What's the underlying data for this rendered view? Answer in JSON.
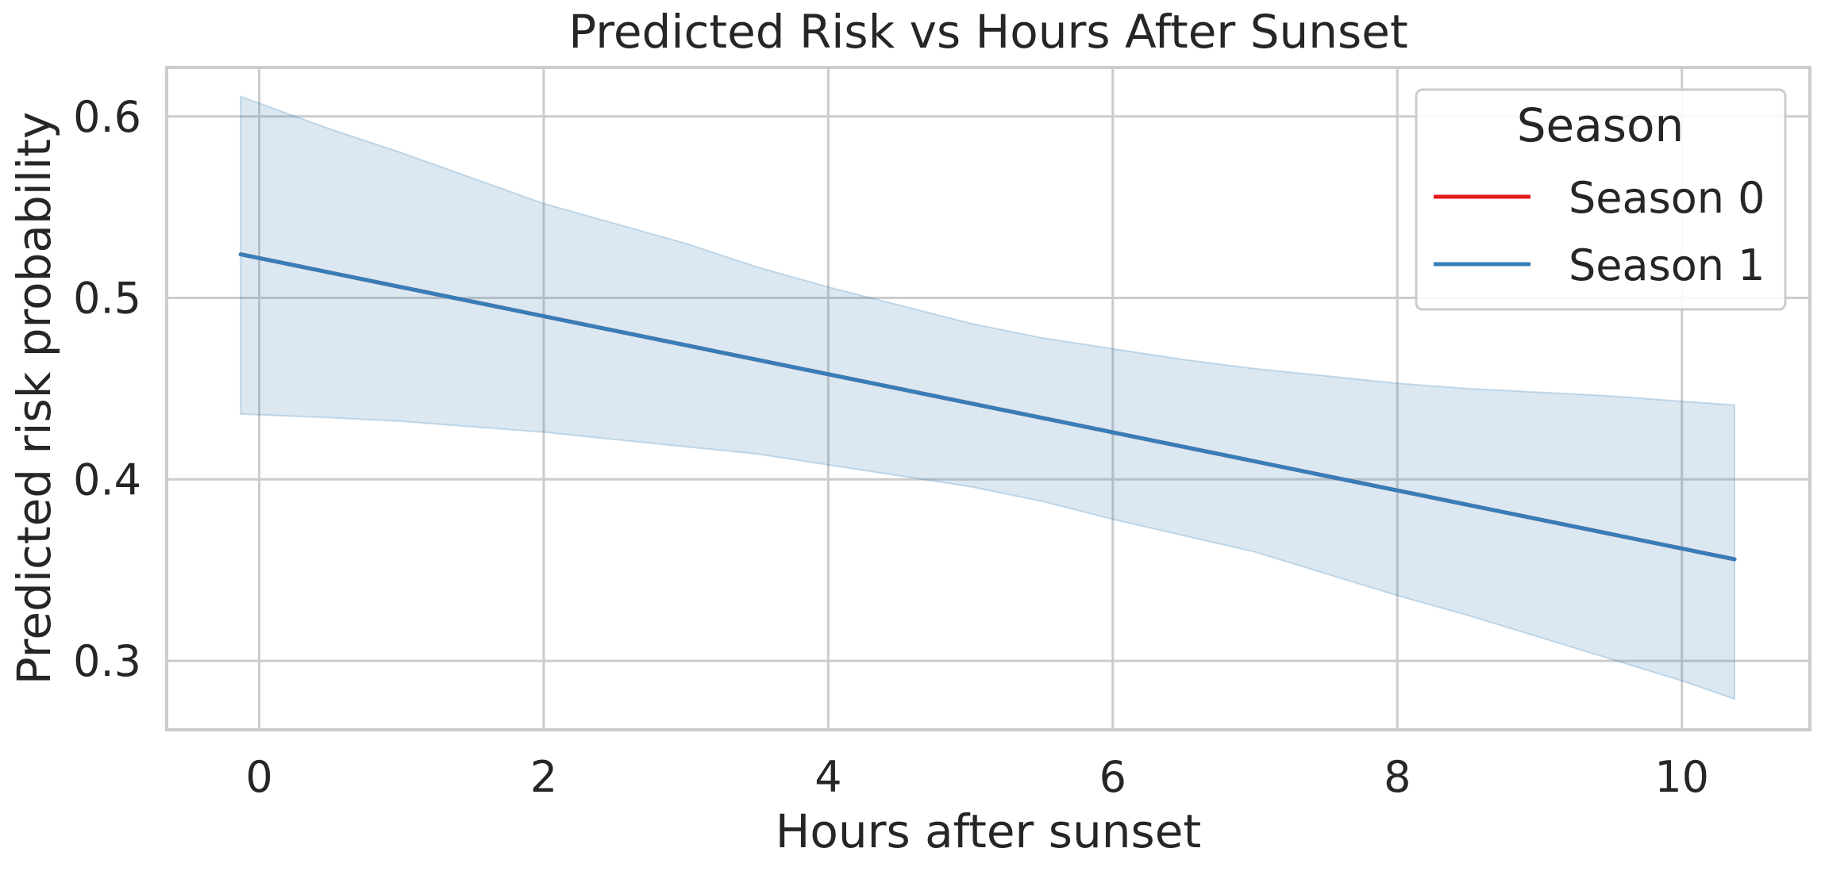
{
  "chart_data": {
    "type": "line",
    "title": "Predicted Risk vs Hours After Sunset",
    "xlabel": "Hours after sunset",
    "ylabel": "Predicted risk probability",
    "xlim": [
      -0.65,
      10.9
    ],
    "ylim": [
      0.262,
      0.627
    ],
    "xticks": [
      0,
      2,
      4,
      6,
      8,
      10
    ],
    "xtick_labels": [
      "0",
      "2",
      "4",
      "6",
      "8",
      "10"
    ],
    "yticks": [
      0.3,
      0.4,
      0.5,
      0.6
    ],
    "ytick_labels": [
      "0.3",
      "0.4",
      "0.5",
      "0.6"
    ],
    "grid": true,
    "legend": {
      "title": "Season",
      "placement": "top-right",
      "entries": [
        "Season 0",
        "Season 1"
      ]
    },
    "series": [
      {
        "name": "Season 0",
        "color": "#e41a1c",
        "x": [
          -0.13,
          10.37
        ],
        "y": [
          0.524,
          0.356
        ]
      },
      {
        "name": "Season 1",
        "color": "#377eb8",
        "x": [
          -0.13,
          10.37
        ],
        "y": [
          0.524,
          0.356
        ]
      }
    ],
    "confidence_band": {
      "series": "Season 1",
      "color": "#377eb8",
      "x": [
        -0.13,
        0.5,
        1.0,
        1.5,
        2.0,
        2.5,
        3.0,
        3.5,
        4.0,
        4.5,
        5.0,
        5.5,
        6.0,
        6.5,
        7.0,
        7.5,
        8.0,
        8.5,
        9.0,
        9.5,
        10.0,
        10.37
      ],
      "upper": [
        0.611,
        0.593,
        0.58,
        0.566,
        0.552,
        0.541,
        0.53,
        0.517,
        0.506,
        0.496,
        0.486,
        0.478,
        0.472,
        0.466,
        0.461,
        0.457,
        0.453,
        0.45,
        0.448,
        0.446,
        0.443,
        0.441
      ],
      "lower": [
        0.436,
        0.434,
        0.432,
        0.429,
        0.426,
        0.422,
        0.418,
        0.414,
        0.408,
        0.402,
        0.396,
        0.388,
        0.378,
        0.369,
        0.36,
        0.348,
        0.336,
        0.325,
        0.313,
        0.301,
        0.289,
        0.279
      ]
    }
  }
}
